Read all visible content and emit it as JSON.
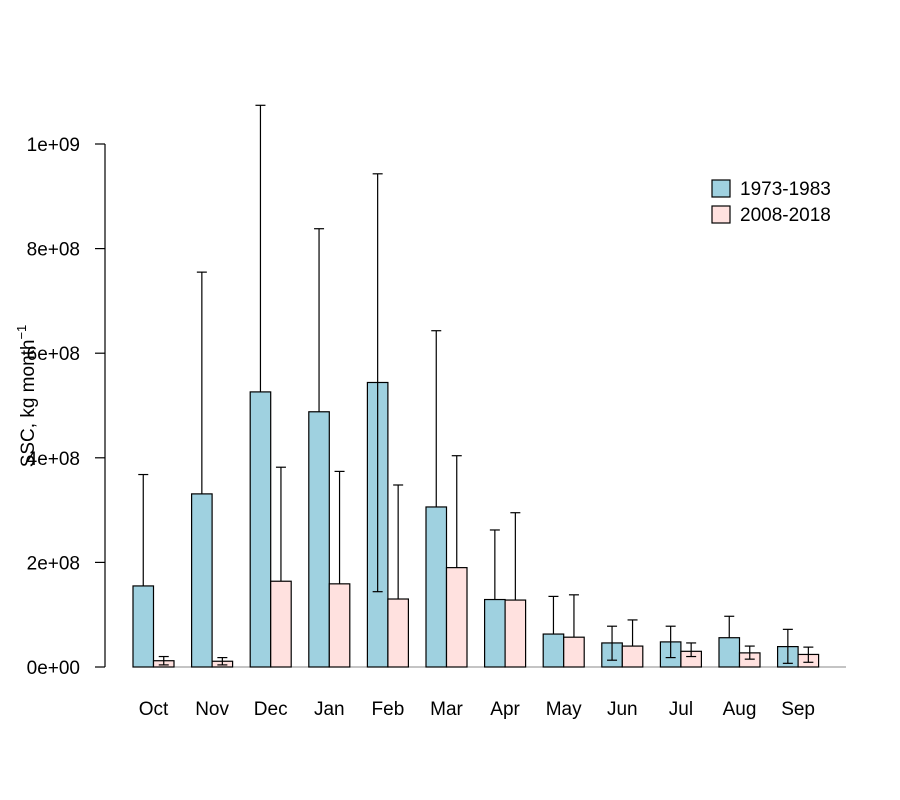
{
  "chart_data": {
    "type": "bar",
    "title": "",
    "xlabel": "",
    "ylabel": "SSC, kg month",
    "ylabel_superscript": "−1",
    "ylim": [
      0,
      1000000000
    ],
    "yticks": [
      0,
      200000000,
      400000000,
      600000000,
      800000000,
      1000000000
    ],
    "ytick_labels": [
      "0e+00",
      "2e+08",
      "4e+08",
      "6e+08",
      "8e+08",
      "1e+09"
    ],
    "categories": [
      "Oct",
      "Nov",
      "Dec",
      "Jan",
      "Feb",
      "Mar",
      "Apr",
      "May",
      "Jun",
      "Jul",
      "Aug",
      "Sep"
    ],
    "legend_position": "top-right",
    "grid": false,
    "series": [
      {
        "name": "1973-1983",
        "color": "#9fd1e0",
        "values": [
          155000000,
          331000000,
          526000000,
          488000000,
          544000000,
          306000000,
          129000000,
          63000000,
          46000000,
          48000000,
          56000000,
          39000000
        ],
        "err_low": [
          155000000,
          331000000,
          526000000,
          488000000,
          144000000,
          306000000,
          129000000,
          63000000,
          13000000,
          18000000,
          56000000,
          7000000
        ],
        "err_high": [
          368000000,
          755000000,
          1074000000,
          838000000,
          943000000,
          643000000,
          262000000,
          135000000,
          78000000,
          78000000,
          97000000,
          72000000
        ]
      },
      {
        "name": "2008-2018",
        "color": "#ffe1df",
        "values": [
          12000000,
          11000000,
          164000000,
          159000000,
          130000000,
          190000000,
          128000000,
          57000000,
          40000000,
          30000000,
          27000000,
          24000000
        ],
        "err_low": [
          4000000,
          4000000,
          164000000,
          159000000,
          130000000,
          190000000,
          128000000,
          57000000,
          40000000,
          20000000,
          15000000,
          9000000
        ],
        "err_high": [
          20000000,
          18000000,
          382000000,
          374000000,
          348000000,
          404000000,
          295000000,
          138000000,
          90000000,
          46000000,
          40000000,
          38000000
        ]
      }
    ]
  }
}
